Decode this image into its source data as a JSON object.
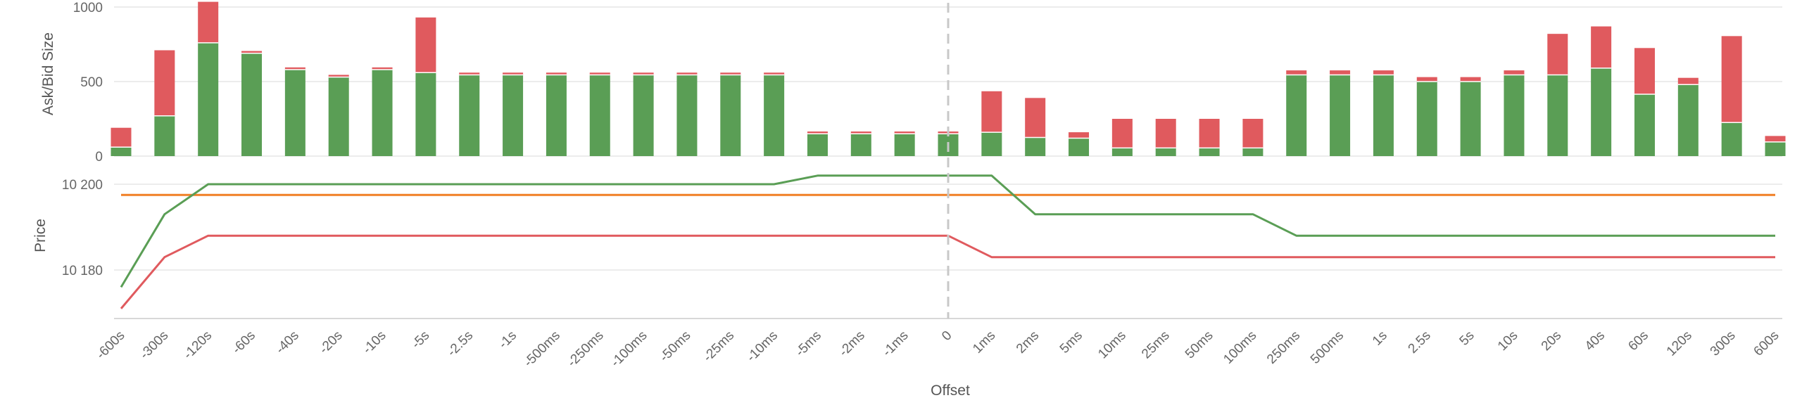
{
  "chart_data": {
    "type": "bar",
    "xlabel": "Offset",
    "categories": [
      "-600s",
      "-300s",
      "-120s",
      "-60s",
      "-40s",
      "-20s",
      "-10s",
      "-5s",
      "-2.5s",
      "-1s",
      "-500ms",
      "-250ms",
      "-100ms",
      "-50ms",
      "-25ms",
      "-10ms",
      "-5ms",
      "-2ms",
      "-1ms",
      "0",
      "1ms",
      "2ms",
      "5ms",
      "10ms",
      "25ms",
      "50ms",
      "100ms",
      "250ms",
      "500ms",
      "1s",
      "2.5s",
      "5s",
      "10s",
      "20s",
      "40s",
      "60s",
      "120s",
      "300s",
      "600s"
    ],
    "panels": [
      {
        "type": "stacked-bar",
        "ylabel": "Ask/Bid Size",
        "ylim": [
          0,
          1000
        ],
        "yticks": [
          "0",
          "500",
          "1000"
        ],
        "series": [
          {
            "color": "#5a9e55",
            "values": [
              60,
              270,
              760,
              690,
              580,
              530,
              580,
              560,
              545,
              545,
              545,
              545,
              545,
              545,
              545,
              545,
              150,
              150,
              150,
              150,
              160,
              125,
              120,
              55,
              55,
              55,
              55,
              545,
              545,
              545,
              500,
              500,
              545,
              545,
              590,
              415,
              480,
              225,
              95
            ]
          },
          {
            "color": "#e05a5e",
            "values": [
              130,
              440,
              275,
              15,
              15,
              15,
              15,
              370,
              15,
              15,
              15,
              15,
              15,
              15,
              15,
              15,
              15,
              15,
              15,
              15,
              275,
              265,
              40,
              195,
              195,
              195,
              195,
              30,
              30,
              30,
              30,
              30,
              30,
              275,
              280,
              310,
              45,
              580,
              40
            ]
          }
        ]
      },
      {
        "type": "line",
        "ylabel": "Price",
        "ylim": [
          10172,
          10202
        ],
        "yticks": [
          "10 180",
          "10 200"
        ],
        "series": [
          {
            "color": "#f07f25",
            "values": [
              10197.5,
              10197.5,
              10197.5,
              10197.5,
              10197.5,
              10197.5,
              10197.5,
              10197.5,
              10197.5,
              10197.5,
              10197.5,
              10197.5,
              10197.5,
              10197.5,
              10197.5,
              10197.5,
              10197.5,
              10197.5,
              10197.5,
              10197.5,
              10197.5,
              10197.5,
              10197.5,
              10197.5,
              10197.5,
              10197.5,
              10197.5,
              10197.5,
              10197.5,
              10197.5,
              10197.5,
              10197.5,
              10197.5,
              10197.5,
              10197.5,
              10197.5,
              10197.5,
              10197.5,
              10197.5
            ]
          },
          {
            "color": "#5a9e55",
            "values": [
              10176,
              10193,
              10200,
              10200,
              10200,
              10200,
              10200,
              10200,
              10200,
              10200,
              10200,
              10200,
              10200,
              10200,
              10200,
              10200,
              10202,
              10202,
              10202,
              10202,
              10202,
              10193,
              10193,
              10193,
              10193,
              10193,
              10193,
              10188,
              10188,
              10188,
              10188,
              10188,
              10188,
              10188,
              10188,
              10188,
              10188,
              10188,
              10188
            ]
          },
          {
            "color": "#e05a5e",
            "values": [
              10171,
              10183,
              10188,
              10188,
              10188,
              10188,
              10188,
              10188,
              10188,
              10188,
              10188,
              10188,
              10188,
              10188,
              10188,
              10188,
              10188,
              10188,
              10188,
              10188,
              10183,
              10183,
              10183,
              10183,
              10183,
              10183,
              10183,
              10183,
              10183,
              10183,
              10183,
              10183,
              10183,
              10183,
              10183,
              10183,
              10183,
              10183,
              10183
            ]
          }
        ]
      }
    ],
    "marker": {
      "category": "0",
      "style": "dashed"
    },
    "grid": true
  }
}
